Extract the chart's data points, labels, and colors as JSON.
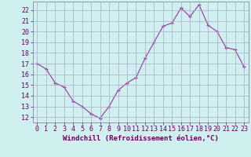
{
  "x": [
    0,
    1,
    2,
    3,
    4,
    5,
    6,
    7,
    8,
    9,
    10,
    11,
    12,
    13,
    14,
    15,
    16,
    17,
    18,
    19,
    20,
    21,
    22,
    23
  ],
  "y": [
    17.0,
    16.5,
    15.2,
    14.8,
    13.5,
    13.0,
    12.3,
    11.9,
    13.0,
    14.5,
    15.2,
    15.7,
    17.5,
    19.0,
    20.5,
    20.8,
    22.2,
    21.4,
    22.5,
    20.6,
    20.0,
    18.5,
    18.3,
    16.7
  ],
  "line_color": "#993399",
  "marker": "+",
  "marker_size": 3,
  "bg_color": "#d0f0f0",
  "grid_color": "#aaaacc",
  "spine_color": "#888899",
  "xlabel": "Windchill (Refroidissement éolien,°C)",
  "xlim": [
    -0.5,
    23.5
  ],
  "ylim": [
    11.5,
    22.8
  ],
  "yticks": [
    12,
    13,
    14,
    15,
    16,
    17,
    18,
    19,
    20,
    21,
    22
  ],
  "xticks": [
    0,
    1,
    2,
    3,
    4,
    5,
    6,
    7,
    8,
    9,
    10,
    11,
    12,
    13,
    14,
    15,
    16,
    17,
    18,
    19,
    20,
    21,
    22,
    23
  ],
  "xlabel_fontsize": 6.5,
  "tick_fontsize": 6.0,
  "tick_color": "#660066"
}
